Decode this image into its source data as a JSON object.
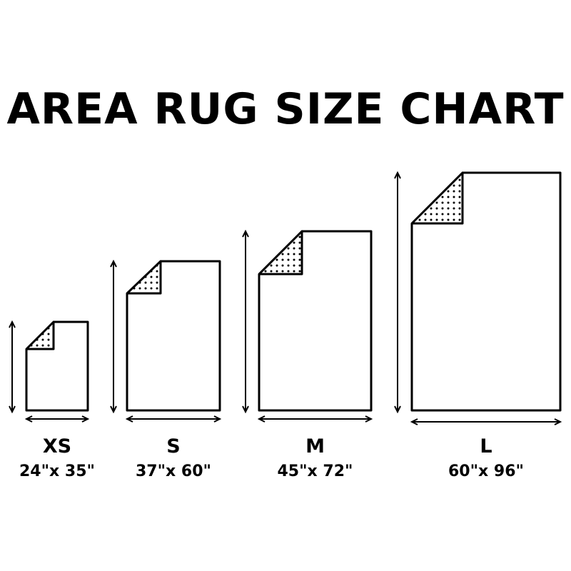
{
  "title": "AREA RUG SIZE CHART",
  "colors": {
    "ink": "#000000",
    "background": "#ffffff"
  },
  "rugs": [
    {
      "size": "XS",
      "dimensions": "24\"x 35\"",
      "width_in": 24,
      "length_in": 35
    },
    {
      "size": "S",
      "dimensions": "37\"x 60\"",
      "width_in": 37,
      "length_in": 60
    },
    {
      "size": "M",
      "dimensions": "45\"x 72\"",
      "width_in": 45,
      "length_in": 72
    },
    {
      "size": "L",
      "dimensions": "60\"x 96\"",
      "width_in": 60,
      "length_in": 96
    }
  ]
}
